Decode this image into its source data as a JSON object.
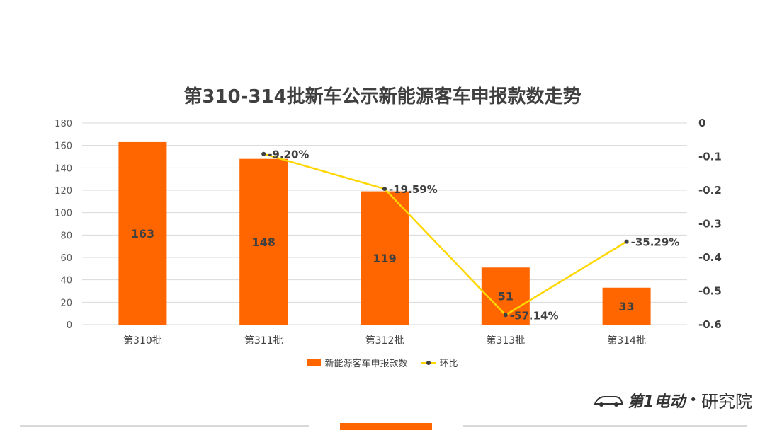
{
  "title": "第310-314批新车公示新能源客车申报款数走势",
  "colors": {
    "bar": "#FF6600",
    "line": "#FFD700",
    "marker": "#404040",
    "grid": "#d9d9d9",
    "accent": "#FF6600"
  },
  "legend": {
    "bar_label": "新能源客车申报款数",
    "line_label": "环比"
  },
  "brand": {
    "logo_text": "第1电动",
    "dot": "•",
    "sub_text": "研究院"
  },
  "chart_data": {
    "type": "bar",
    "title": "第310-314批新车公示新能源客车申报款数走势",
    "categories": [
      "第310批",
      "第311批",
      "第312批",
      "第313批",
      "第314批"
    ],
    "series": [
      {
        "name": "新能源客车申报款数",
        "type": "bar",
        "axis": "left",
        "values": [
          163,
          148,
          119,
          51,
          33
        ],
        "labels": [
          "163",
          "148",
          "119",
          "51",
          "33"
        ]
      },
      {
        "name": "环比",
        "type": "line",
        "axis": "right",
        "values": [
          null,
          -0.092,
          -0.1959,
          -0.5714,
          -0.3529
        ],
        "labels": [
          "",
          "-9.20%",
          "-19.59%",
          "-57.14%",
          "-35.29%"
        ]
      }
    ],
    "y_left": {
      "range": [
        0,
        180
      ],
      "ticks": [
        0,
        20,
        40,
        60,
        80,
        100,
        120,
        140,
        160,
        180
      ]
    },
    "y_right": {
      "range": [
        -0.6,
        0
      ],
      "ticks": [
        0,
        -0.1,
        -0.2,
        -0.3,
        -0.4,
        -0.5,
        -0.6
      ],
      "tick_labels": [
        "0",
        "-0.1",
        "-0.2",
        "-0.3",
        "-0.4",
        "-0.5",
        "-0.6"
      ]
    },
    "grid": true,
    "legend_position": "bottom"
  }
}
